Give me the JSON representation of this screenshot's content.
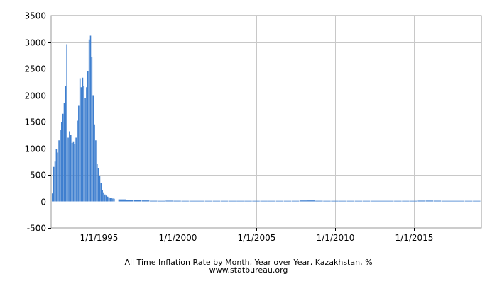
{
  "chart_data": {
    "type": "bar",
    "title": "All Time Inflation Rate by Month, Year over Year, Kazakhstan, %",
    "subtitle": "www.statbureau.org",
    "xlabel": "",
    "ylabel": "",
    "ylim": [
      -500,
      3500
    ],
    "yticks": [
      -500,
      0,
      500,
      1000,
      1500,
      2000,
      2500,
      3000,
      3500
    ],
    "xlim": [
      1992.0,
      2019.3
    ],
    "xticks": [
      {
        "x": 1995.0,
        "label": "1/1/1995"
      },
      {
        "x": 2000.0,
        "label": "1/1/2000"
      },
      {
        "x": 2005.0,
        "label": "1/1/2005"
      },
      {
        "x": 2010.0,
        "label": "1/1/2010"
      },
      {
        "x": 2015.0,
        "label": "1/1/2015"
      }
    ],
    "grid": true,
    "legend": "none",
    "bar_color": "#3f7fcf",
    "series": [
      {
        "x": [
          1992.083,
          1992.167,
          1992.25,
          1992.333,
          1992.417,
          1992.5,
          1992.583,
          1992.667,
          1992.75,
          1992.833,
          1992.917,
          1993.0,
          1993.083,
          1993.167,
          1993.25,
          1993.333,
          1993.417,
          1993.5,
          1993.583,
          1993.667,
          1993.75,
          1993.833,
          1993.917,
          1994.0,
          1994.083,
          1994.167,
          1994.25,
          1994.333,
          1994.417,
          1994.5,
          1994.583,
          1994.667,
          1994.75,
          1994.833,
          1994.917,
          1995.0,
          1995.083,
          1995.167,
          1995.25,
          1995.333,
          1995.417,
          1995.5,
          1995.583,
          1995.667,
          1995.75,
          1995.833,
          1995.917,
          1996.0,
          1996.5,
          1997.0,
          1997.5,
          1998.0,
          1998.5,
          1999.0,
          1999.5,
          2000.0,
          2000.5,
          2001.0,
          2001.5,
          2002.0,
          2002.5,
          2003.0,
          2003.5,
          2004.0,
          2004.5,
          2005.0,
          2005.5,
          2006.0,
          2006.5,
          2007.0,
          2007.5,
          2008.0,
          2008.5,
          2009.0,
          2009.5,
          2010.0,
          2010.5,
          2011.0,
          2011.5,
          2012.0,
          2012.5,
          2013.0,
          2013.5,
          2014.0,
          2014.5,
          2015.0,
          2015.5,
          2016.0,
          2016.5,
          2017.0,
          2017.5,
          2018.0,
          2018.5,
          2019.0
        ],
        "values": [
          150,
          650,
          750,
          980,
          920,
          1150,
          1350,
          1500,
          1650,
          1850,
          2180,
          2960,
          1200,
          1320,
          1250,
          1100,
          1130,
          1080,
          1200,
          1520,
          1800,
          2320,
          2150,
          2330,
          2180,
          1950,
          2150,
          2450,
          3050,
          3120,
          2720,
          2000,
          1450,
          1150,
          700,
          620,
          480,
          350,
          220,
          170,
          130,
          110,
          90,
          80,
          70,
          60,
          55,
          50,
          38,
          28,
          22,
          18,
          12,
          10,
          14,
          12,
          10,
          8,
          8,
          6,
          6,
          6,
          7,
          7,
          7,
          8,
          8,
          8,
          9,
          9,
          11,
          17,
          18,
          12,
          7,
          7,
          8,
          8,
          8,
          5,
          4,
          5,
          5,
          5,
          7,
          6,
          14,
          15,
          13,
          8,
          7,
          6,
          5,
          5
        ]
      }
    ]
  }
}
